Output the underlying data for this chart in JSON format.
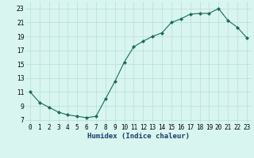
{
  "x": [
    0,
    1,
    2,
    3,
    4,
    5,
    6,
    7,
    8,
    9,
    10,
    11,
    12,
    13,
    14,
    15,
    16,
    17,
    18,
    19,
    20,
    21,
    22,
    23
  ],
  "y": [
    11,
    9.5,
    8.8,
    8.1,
    7.7,
    7.5,
    7.3,
    7.5,
    10.0,
    12.5,
    15.3,
    17.5,
    18.3,
    19.0,
    19.5,
    21.0,
    21.5,
    22.2,
    22.3,
    22.3,
    23.0,
    21.3,
    20.3,
    18.8
  ],
  "line_color": "#1a6b5a",
  "marker": "D",
  "marker_size": 2,
  "bg_color": "#d8f5f0",
  "grid_color": "#b8ddd8",
  "xlabel": "Humidex (Indice chaleur)",
  "xlim": [
    -0.5,
    23.5
  ],
  "ylim": [
    6.5,
    24.0
  ],
  "yticks": [
    7,
    9,
    11,
    13,
    15,
    17,
    19,
    21,
    23
  ],
  "xticks": [
    0,
    1,
    2,
    3,
    4,
    5,
    6,
    7,
    8,
    9,
    10,
    11,
    12,
    13,
    14,
    15,
    16,
    17,
    18,
    19,
    20,
    21,
    22,
    23
  ],
  "xlabel_fontsize": 6.5,
  "tick_fontsize": 5.5,
  "xlabel_color": "#1a3a6b"
}
